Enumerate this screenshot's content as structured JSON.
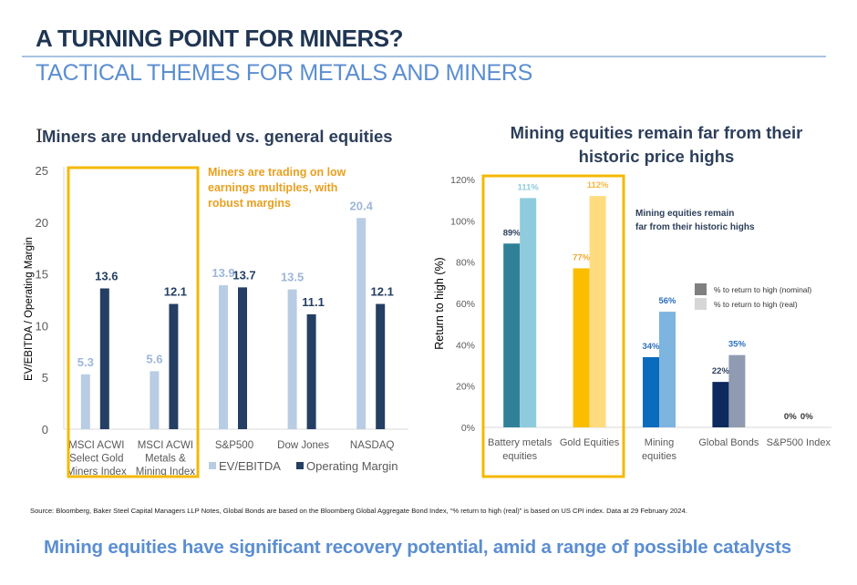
{
  "header": {
    "title": "A TURNING POINT FOR MINERS?",
    "subtitle": "TACTICAL THEMES FOR METALS AND MINERS"
  },
  "footer": {
    "source": "Source: Bloomberg, Baker Steel Capital Managers LLP Notes, Global Bonds are based on the Bloomberg Global Aggregate Bond Index, “% return to high (real)” is based on US CPI index. Data at 29 February 2024.",
    "tagline": "Mining equities have significant recovery potential, amid a range of possible catalysts"
  },
  "colors": {
    "title_dark": "#1f3552",
    "subtitle_blue": "#5b8ed1",
    "highlight_box": "#f5b800",
    "annotation_orange": "#e8a020"
  },
  "chart_data": [
    {
      "type": "bar",
      "title": "Miners are undervalued vs. general equities",
      "xlabel": "",
      "ylabel": "EV/EBITDA / Operating Margin",
      "ylim": [
        0,
        25
      ],
      "yticks": [
        0,
        5,
        10,
        15,
        20,
        25
      ],
      "grid": false,
      "legend_position": "bottom-right",
      "categories": [
        "MSCI ACWI Select Gold Miners Index",
        "MSCI ACWI Metals & Mining Index",
        "S&P500",
        "Dow Jones",
        "NASDAQ"
      ],
      "category_lines": [
        [
          "MSCI ACWI",
          "Select Gold",
          "Miners Index"
        ],
        [
          "MSCI ACWI",
          "Metals &",
          "Mining Index"
        ],
        [
          "S&P500"
        ],
        [
          "Dow Jones"
        ],
        [
          "NASDAQ"
        ]
      ],
      "series": [
        {
          "name": "EV/EBITDA",
          "color": "#b8cce4",
          "label_color": "#9db6d9",
          "values": [
            5.3,
            5.6,
            13.9,
            13.5,
            20.4
          ]
        },
        {
          "name": "Operating Margin",
          "color": "#243f63",
          "label_color": "#243f63",
          "values": [
            13.6,
            12.1,
            13.7,
            11.1,
            12.1
          ]
        }
      ],
      "highlight": {
        "categories": [
          0,
          1
        ]
      },
      "annotation": "Miners are trading on low earnings multiples, with robust margins"
    },
    {
      "type": "bar",
      "title": "Mining equities remain far from their historic price highs",
      "xlabel": "",
      "ylabel": "Return to high (%)",
      "ylim": [
        0,
        120
      ],
      "yticks": [
        0,
        20,
        40,
        60,
        80,
        100,
        120
      ],
      "ytick_suffix": "%",
      "grid": false,
      "legend_position": "right",
      "categories": [
        "Battery metals equities",
        "Gold Equities",
        "Mining equities",
        "Global Bonds",
        "S&P500 Index"
      ],
      "category_lines": [
        [
          "Battery metals",
          "equities"
        ],
        [
          "Gold Equities"
        ],
        [
          "Mining",
          "equities"
        ],
        [
          "Global Bonds"
        ],
        [
          "S&P500 Index"
        ]
      ],
      "series": [
        {
          "name": "% to return to high (nominal)",
          "legend_color": "#7f7f7f",
          "values": [
            89,
            77,
            34,
            22,
            0
          ],
          "bar_colors": [
            "#2f8199",
            "#fbbd00",
            "#0b6bbd",
            "#0c2a5e",
            "#ffffff"
          ],
          "label_colors": [
            "#2c3e5a",
            "#f0a830",
            "#2a6fbf",
            "#2c3e5a",
            "#333333"
          ]
        },
        {
          "name": "% to return to high (real)",
          "legend_color": "#d6d6d6",
          "values": [
            111,
            112,
            56,
            35,
            0
          ],
          "bar_colors": [
            "#8ecbdc",
            "#ffdb80",
            "#7db5e0",
            "#8e9bb0",
            "#ffffff"
          ],
          "label_colors": [
            "#8ecbdc",
            "#f6b640",
            "#2a6fbf",
            "#2a6fbf",
            "#333333"
          ]
        }
      ],
      "highlight": {
        "categories": [
          0,
          1
        ]
      },
      "annotation": "Mining equities remain far from their historic highs",
      "annotation_lines": [
        "Mining equities remain",
        "far from their historic highs"
      ]
    }
  ]
}
